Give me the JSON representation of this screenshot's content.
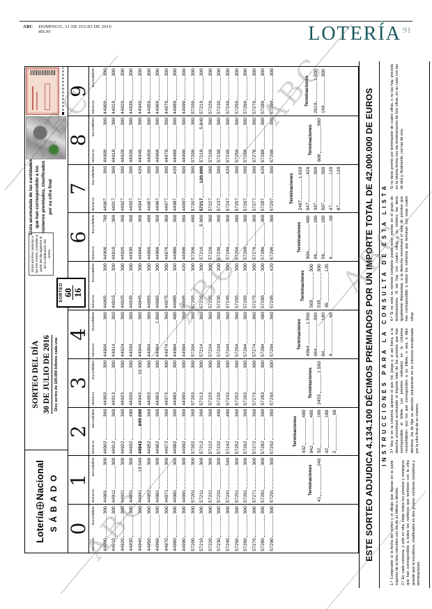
{
  "header": {
    "brand": "ABC",
    "date": "DOMINGO, 31 DE JULIO DE 2016",
    "site": "abc.es",
    "section": "LOTERÍA",
    "page_number": "91",
    "watermark": "ABC"
  },
  "lottery": {
    "logo_word1": "Lotería",
    "logo_word2": "Nacional",
    "weekday": "SÁBADO",
    "draw_title": "SORTEO DEL DÍA",
    "draw_date": "30 DE JULIO DE 2016",
    "series_note": "Diez series de 100.000 billetes cada una",
    "sorteo_label": "SORTEO",
    "sorteo_number": "60",
    "sorteo_year": "16",
    "expiry_note": "Estos premios caducan a los tres meses, contados a partir del día siguiente al de la celebración del sorteo",
    "list_note": "Lista acumulada de las cantidades que han correspondido a los números premiados, clasificados por su cifra final",
    "col_label_numbers": "Números",
    "col_label_euros": "Euros/Billete",
    "terminaciones_label": "Terminaciones",
    "headline": "ESTE SORTEO ADJUDICA 4.134.100 DÉCIMOS PREMIADOS POR UN IMPORTE TOTAL DE 42.000.000 DE EUROS",
    "instructions_title": "INSTRUCCIONES PARA LA CONSULTA DE ESTA LISTA",
    "notes": [
      "1.ª  Compruebe si la fecha del sorteo y el dibujo que figuran en la parte superior de la lista coinciden con los de su billete o décimo.",
      "2.ª  En cada columna, y sólo en ella, están todos los premios y reintegros que han correspondido a todos los números que terminen con la cifra grande que la encabeza, clasificados en dos grupos: números completos y terminaciones.",
      "3.ª  Vea si en la columna aparece el que Vd. juega y, si así fuera, a la derecha encontrará acumulado el importe total de los premios que han correspondido al billete. Los premios indicados en la columna «euros/billete» son los que corresponden a un billete, o sea, a diez décimos. Ha de fijar su atención únicamente en la columna encabezada por la cifra final de su número.",
      "4.ª  Si no está su número completo puede tener premio en el grupo de terminaciones. Si las hay con cuatro cifras y su número las tiene igualmente dispuestas, a la derecha encontrará el total de premios que han correspondido a todos los números que terminan con esas cuatro cifras.",
      "Si no tiene premio por terminación de cuatro cifras, o no las hay, proceda en la misma forma con las terminaciones de tres cifras, en su caso con las de dos y, finalmente, con las de una."
    ],
    "columns": [
      {
        "digit": "0",
        "entries": [
          [
            "44900",
            "300"
          ],
          [
            "44910",
            "300"
          ],
          [
            "44920",
            "300"
          ],
          [
            "44930",
            "300"
          ],
          [
            "44940",
            "300"
          ],
          [
            "44950",
            "300"
          ],
          [
            "44960",
            "300"
          ],
          [
            "44970",
            "300"
          ],
          [
            "44980",
            "300"
          ],
          [
            "44990",
            "300"
          ],
          [
            "57200",
            "300"
          ],
          [
            "57210",
            "300"
          ],
          [
            "57220",
            "300"
          ],
          [
            "57230",
            "300"
          ],
          [
            "57240",
            "300"
          ],
          [
            "57250",
            "300"
          ],
          [
            "57260",
            "300"
          ],
          [
            "57270",
            "300"
          ],
          [
            "57280",
            "300"
          ],
          [
            "57290",
            "300"
          ]
        ],
        "terminaciones": []
      },
      {
        "digit": "1",
        "entries": [
          [
            "44901",
            "300"
          ],
          [
            "44911",
            "300"
          ],
          [
            "44921",
            "300"
          ],
          [
            "44931",
            "300"
          ],
          [
            "44941",
            "10.540"
          ],
          [
            "44951",
            "300"
          ],
          [
            "44961",
            "300"
          ],
          [
            "44971",
            "300"
          ],
          [
            "44981",
            "300"
          ],
          [
            "44991",
            "300"
          ],
          [
            "57201",
            "300"
          ],
          [
            "57211",
            "300"
          ],
          [
            "57221",
            "300"
          ],
          [
            "57231",
            "300"
          ],
          [
            "57241",
            "540"
          ],
          [
            "57251",
            "300"
          ],
          [
            "57261",
            "300"
          ],
          [
            "57271",
            "300"
          ],
          [
            "57281",
            "300"
          ],
          [
            "57291",
            "300"
          ]
        ],
        "terminaciones": [
          [
            "41",
            "240"
          ]
        ]
      },
      {
        "digit": "2",
        "entries": [
          [
            "44902",
            "360"
          ],
          [
            "44912",
            "360"
          ],
          [
            "44922",
            "360"
          ],
          [
            "44932",
            "480"
          ],
          [
            "44942",
            "600.000",
            "b"
          ],
          [
            "44952",
            "360"
          ],
          [
            "44962",
            "360"
          ],
          [
            "44972",
            "360"
          ],
          [
            "44982",
            "360"
          ],
          [
            "44992",
            "360"
          ],
          [
            "57202",
            "360"
          ],
          [
            "57212",
            "360"
          ],
          [
            "57222",
            "360"
          ],
          [
            "57232",
            "480"
          ],
          [
            "57242",
            "480"
          ],
          [
            "57252",
            "360"
          ],
          [
            "57262",
            "360"
          ],
          [
            "57272",
            "360"
          ],
          [
            "57282",
            "360"
          ],
          [
            "57292",
            "360"
          ]
        ],
        "terminaciones": [
          [
            "432",
            "480"
          ],
          [
            "942",
            "480"
          ],
          [
            "32",
            "180"
          ],
          [
            "42",
            "180"
          ],
          [
            "2",
            "60"
          ]
        ]
      },
      {
        "digit": "3",
        "entries": [
          [
            "44903",
            "300"
          ],
          [
            "44913",
            "300"
          ],
          [
            "44923",
            "300"
          ],
          [
            "44933",
            "300"
          ],
          [
            "44943",
            "10.300"
          ],
          [
            "44953",
            "300"
          ],
          [
            "44963",
            "300"
          ],
          [
            "44973",
            "300"
          ],
          [
            "44983",
            "300"
          ],
          [
            "44993",
            "300"
          ],
          [
            "57203",
            "300"
          ],
          [
            "57213",
            "300"
          ],
          [
            "57223",
            "300"
          ],
          [
            "57233",
            "300"
          ],
          [
            "57243",
            "300"
          ],
          [
            "57253",
            "300"
          ],
          [
            "57263",
            "300"
          ],
          [
            "57273",
            "300"
          ],
          [
            "57283",
            "300"
          ],
          [
            "57293",
            "300"
          ]
        ],
        "terminaciones": [
          [
            "2453",
            "1.500"
          ]
        ]
      },
      {
        "digit": "4",
        "entries": [
          [
            "44904",
            "360"
          ],
          [
            "44914",
            "360"
          ],
          [
            "44924",
            "360"
          ],
          [
            "44934",
            "360"
          ],
          [
            "44944",
            "360"
          ],
          [
            "44954",
            "360"
          ],
          [
            "44964",
            "1.860"
          ],
          [
            "44974",
            "360"
          ],
          [
            "44984",
            "480"
          ],
          [
            "44994",
            "360"
          ],
          [
            "57204",
            "360"
          ],
          [
            "57214",
            "360"
          ],
          [
            "57224",
            "360"
          ],
          [
            "57234",
            "360"
          ],
          [
            "57244",
            "360"
          ],
          [
            "57254",
            "360"
          ],
          [
            "57264",
            "360"
          ],
          [
            "57274",
            "360"
          ],
          [
            "57284",
            "480"
          ],
          [
            "57294",
            "360"
          ]
        ],
        "terminaciones": [
          [
            "4964",
            "1.560"
          ],
          [
            "664",
            "360"
          ],
          [
            "84",
            "180"
          ],
          [
            "4",
            "60"
          ]
        ]
      },
      {
        "digit": "5",
        "entries": [
          [
            "44905",
            "300"
          ],
          [
            "44915",
            "300"
          ],
          [
            "44925",
            "300"
          ],
          [
            "44935",
            "300"
          ],
          [
            "44945",
            "300"
          ],
          [
            "44955",
            "300"
          ],
          [
            "44965",
            "300"
          ],
          [
            "44975",
            "300"
          ],
          [
            "44985",
            "300"
          ],
          [
            "44995",
            "420"
          ],
          [
            "57205",
            "300"
          ],
          [
            "57215",
            "300"
          ],
          [
            "57225",
            "300"
          ],
          [
            "57235",
            "300"
          ],
          [
            "57245",
            "300"
          ],
          [
            "57255",
            "300"
          ],
          [
            "57265",
            "300"
          ],
          [
            "57275",
            "300"
          ],
          [
            "57285",
            "300"
          ],
          [
            "57295",
            "420"
          ]
        ],
        "terminaciones": [
          [
            "505",
            "300"
          ],
          [
            "535",
            "300"
          ],
          [
            "95",
            "120"
          ]
        ]
      },
      {
        "digit": "6",
        "entries": [
          [
            "44906",
            "780"
          ],
          [
            "44916",
            "360"
          ],
          [
            "44926",
            "360"
          ],
          [
            "44936",
            "360"
          ],
          [
            "44946",
            "360"
          ],
          [
            "44956",
            "480"
          ],
          [
            "44966",
            "360"
          ],
          [
            "44976",
            "360"
          ],
          [
            "44986",
            "360"
          ],
          [
            "44996",
            "360"
          ],
          [
            "57206",
            "480"
          ],
          [
            "57216",
            "5.900"
          ],
          [
            "57226",
            "360"
          ],
          [
            "57236",
            "360"
          ],
          [
            "57246",
            "360"
          ],
          [
            "57256",
            "480"
          ],
          [
            "57266",
            "360"
          ],
          [
            "57276",
            "360"
          ],
          [
            "57286",
            "360"
          ],
          [
            "57296",
            "360"
          ]
        ],
        "terminaciones": [
          [
            "906",
            "480"
          ],
          [
            "06",
            "180"
          ],
          [
            "56",
            "180"
          ],
          [
            "6",
            "60"
          ]
        ]
      },
      {
        "digit": "7",
        "entries": [
          [
            "44907",
            "300"
          ],
          [
            "44917",
            "300"
          ],
          [
            "44927",
            "300"
          ],
          [
            "44937",
            "300"
          ],
          [
            "44947",
            "420"
          ],
          [
            "44957",
            "300"
          ],
          [
            "44967",
            "300"
          ],
          [
            "44977",
            "300"
          ],
          [
            "44987",
            "420"
          ],
          [
            "44997",
            "300"
          ],
          [
            "57207",
            "300"
          ],
          [
            "57217",
            "120.000",
            "b"
          ],
          [
            "57227",
            "300"
          ],
          [
            "57237",
            "300"
          ],
          [
            "57247",
            "420"
          ],
          [
            "57257",
            "300"
          ],
          [
            "57267",
            "300"
          ],
          [
            "57277",
            "300"
          ],
          [
            "57287",
            "420"
          ],
          [
            "57297",
            "300"
          ]
        ],
        "terminaciones": [
          [
            "2487",
            "1.620"
          ],
          [
            "047",
            "420"
          ],
          [
            "397",
            "300"
          ],
          [
            "507",
            "300"
          ],
          [
            "47",
            "120"
          ],
          [
            "87",
            "120"
          ]
        ]
      },
      {
        "digit": "8",
        "entries": [
          [
            "44908",
            "300"
          ],
          [
            "44918",
            "300"
          ],
          [
            "44928",
            "300"
          ],
          [
            "44938",
            "300"
          ],
          [
            "44948",
            "300"
          ],
          [
            "44958",
            "300"
          ],
          [
            "44968",
            "300"
          ],
          [
            "44978",
            "300"
          ],
          [
            "44988",
            "300"
          ],
          [
            "44998",
            "300"
          ],
          [
            "57208",
            "300"
          ],
          [
            "57218",
            "5.840"
          ],
          [
            "57228",
            "300"
          ],
          [
            "57238",
            "300"
          ],
          [
            "57248",
            "300"
          ],
          [
            "57258",
            "300"
          ],
          [
            "57268",
            "300"
          ],
          [
            "57278",
            "300"
          ],
          [
            "57288",
            "300"
          ],
          [
            "57298",
            "300"
          ]
        ],
        "terminaciones": [
          [
            "608",
            "300"
          ]
        ]
      },
      {
        "digit": "9",
        "entries": [
          [
            "44909",
            "300"
          ],
          [
            "44919",
            "300"
          ],
          [
            "44929",
            "300"
          ],
          [
            "44939",
            "300"
          ],
          [
            "44949",
            "300"
          ],
          [
            "44959",
            "300"
          ],
          [
            "44969",
            "300"
          ],
          [
            "44979",
            "300"
          ],
          [
            "44989",
            "300"
          ],
          [
            "44999",
            "300"
          ],
          [
            "57209",
            "300"
          ],
          [
            "57219",
            "300"
          ],
          [
            "57229",
            "300"
          ],
          [
            "57239",
            "300"
          ],
          [
            "57249",
            "300"
          ],
          [
            "57259",
            "300"
          ],
          [
            "57269",
            "300"
          ],
          [
            "57279",
            "300"
          ],
          [
            "57289",
            "300"
          ],
          [
            "57299",
            "300"
          ]
        ],
        "terminaciones": [
          [
            "2619",
            "1.500"
          ],
          [
            "149",
            "300"
          ]
        ]
      }
    ]
  }
}
